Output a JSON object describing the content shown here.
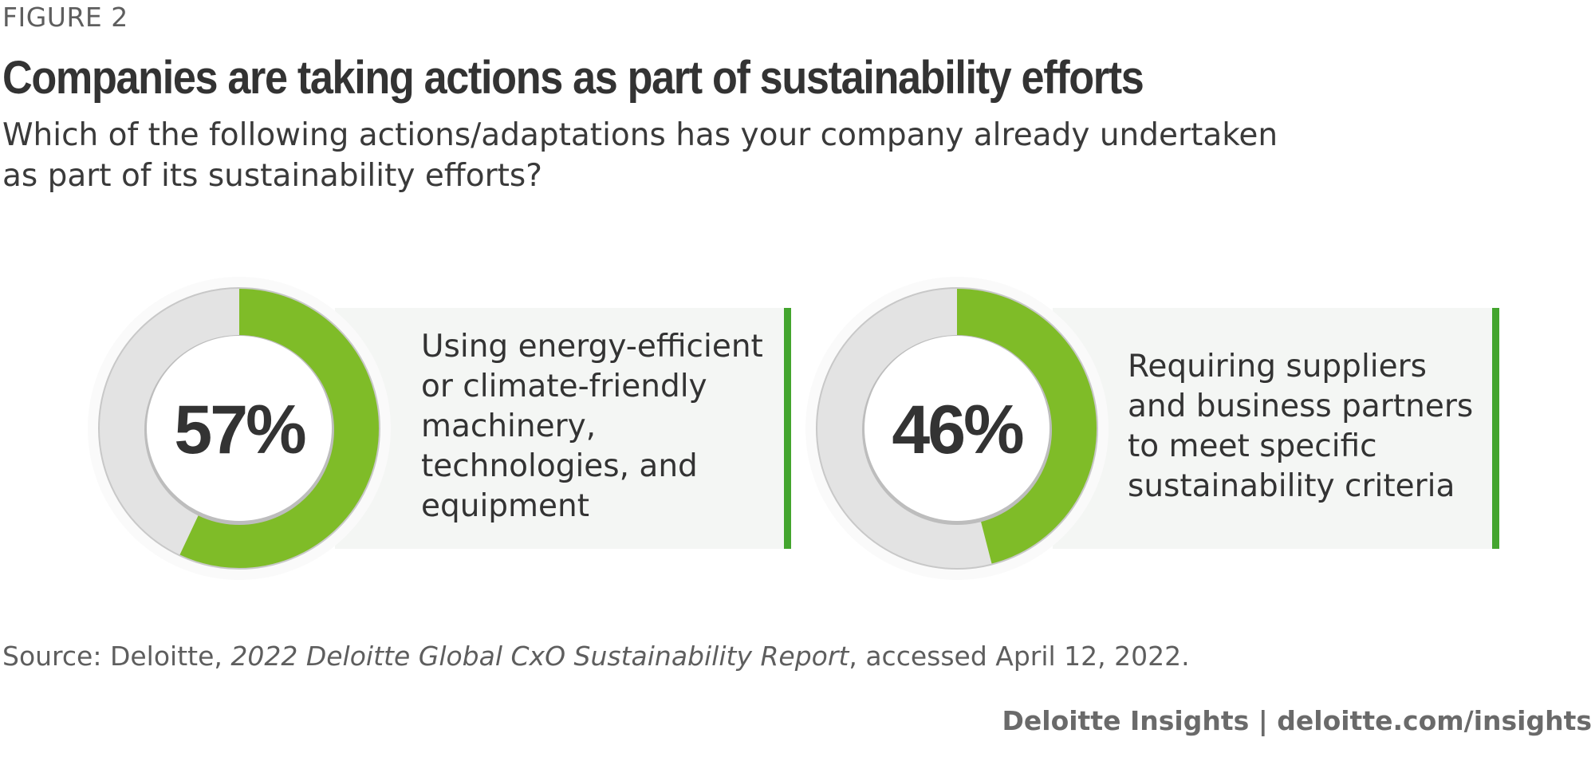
{
  "header": {
    "figure_label": "FIGURE 2",
    "title": "Companies are taking actions as part of sustainability efforts",
    "subtitle": "Which of the following actions/adaptations has your company already undertaken as part of its sustainability efforts?"
  },
  "colors": {
    "accent": "#7fbc28",
    "remainder": "#e3e3e3",
    "card_bg": "#f4f6f4",
    "bar": "#43a52e"
  },
  "chart_data": [
    {
      "type": "pie",
      "title": "Using energy-efficient or climate-friendly machinery, technologies, and equipment",
      "value": 57,
      "value_label": "57%",
      "description_lines": [
        "Using energy-efficient",
        "or climate-friendly",
        "machinery,",
        "technologies, and",
        "equipment"
      ]
    },
    {
      "type": "pie",
      "title": "Requiring suppliers and business partners to meet specific sustainability criteria",
      "value": 46,
      "value_label": "46%",
      "description_lines": [
        "Requiring suppliers",
        "and business partners",
        "to meet specific",
        "sustainability criteria"
      ]
    }
  ],
  "source": {
    "prefix": "Source: Deloitte, ",
    "report": "2022 Deloitte Global CxO Sustainability Report",
    "suffix": ", accessed April 12, 2022."
  },
  "footer": {
    "credit": "Deloitte Insights | deloitte.com/insights"
  }
}
